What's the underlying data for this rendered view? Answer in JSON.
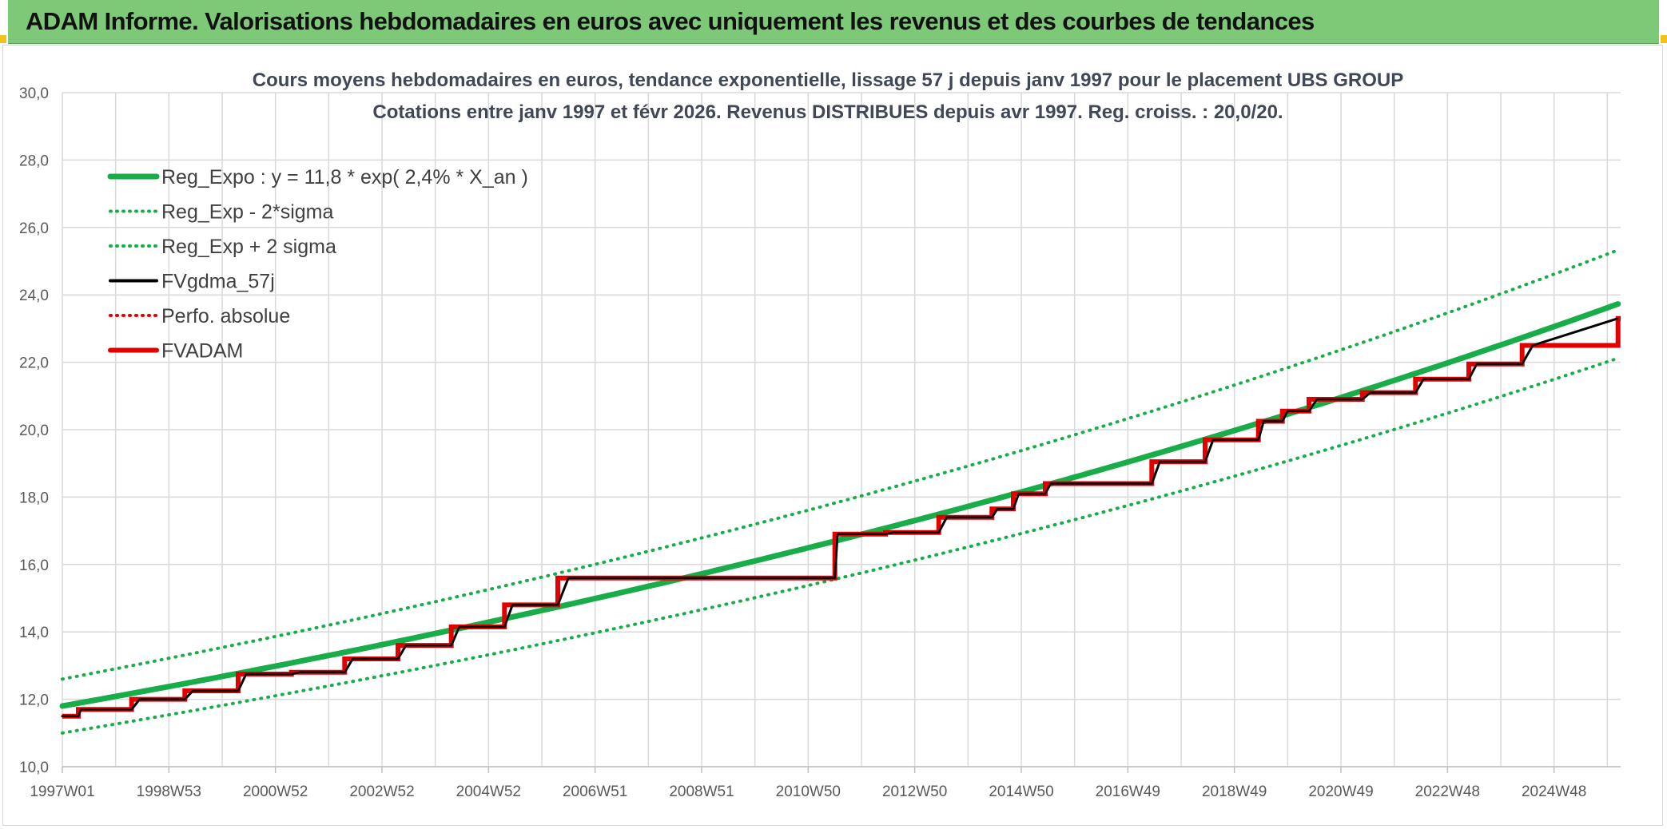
{
  "header": {
    "title": "ADAM Informe. Valorisations hebdomadaires en euros avec uniquement les revenus et des courbes de tendances"
  },
  "chart_data": {
    "type": "line",
    "title_lines": [
      "Cours moyens hebdomadaires en euros, tendance exponentielle, lissage 57 j depuis janv 1997 pour le placement UBS GROUP",
      "Cotations entre janv 1997 et févr 2026. Revenus DISTRIBUES depuis avr 1997. Reg. croiss. : 20,0/20."
    ],
    "xlabel": "",
    "ylabel": "",
    "ylim": [
      10,
      30
    ],
    "y_ticks": [
      "10,0",
      "12,0",
      "14,0",
      "16,0",
      "18,0",
      "20,0",
      "22,0",
      "24,0",
      "26,0",
      "28,0",
      "30,0"
    ],
    "x_range": [
      1997.0,
      2026.25
    ],
    "x_tick_labels": [
      "1997W01",
      "1998W53",
      "2000W52",
      "2002W52",
      "2004W52",
      "2006W51",
      "2008W51",
      "2010W50",
      "2012W50",
      "2014W50",
      "2016W49",
      "2018W49",
      "2020W49",
      "2022W48",
      "2024W48"
    ],
    "grid": true,
    "legend_position": "top-left",
    "series": [
      {
        "name": "Reg_Expo : y = 11,8 * exp( 2,4% *  X_an )",
        "color": "#18ad48",
        "style": "solid-thick",
        "x": [
          1997,
          2000,
          2003,
          2006,
          2009,
          2012,
          2015,
          2018,
          2021,
          2024,
          2026.2
        ],
        "values": [
          11.8,
          12.68,
          13.62,
          14.63,
          15.72,
          16.89,
          18.14,
          19.49,
          20.94,
          22.49,
          23.73
        ]
      },
      {
        "name": "Reg_Exp - 2*sigma",
        "color": "#18ad48",
        "style": "dotted",
        "x": [
          1997,
          2000,
          2003,
          2006,
          2009,
          2012,
          2015,
          2018,
          2021,
          2024,
          2026.2
        ],
        "values": [
          11.0,
          11.82,
          12.7,
          13.64,
          14.65,
          15.74,
          16.91,
          18.17,
          19.52,
          20.97,
          22.12
        ]
      },
      {
        "name": "Reg_Exp + 2 sigma",
        "color": "#18ad48",
        "style": "dotted",
        "x": [
          1997,
          2000,
          2003,
          2006,
          2009,
          2012,
          2015,
          2018,
          2021,
          2024,
          2026.2
        ],
        "values": [
          12.6,
          13.54,
          14.55,
          15.62,
          16.78,
          18.03,
          19.37,
          20.81,
          22.36,
          24.02,
          25.33
        ]
      },
      {
        "name": "FVgdma_57j",
        "color": "#000000",
        "style": "solid",
        "x": [
          1997.0,
          1997.3,
          1997.35,
          1998.3,
          1998.45,
          1999.3,
          1999.45,
          2000.3,
          2000.45,
          2001.3,
          2001.45,
          2002.3,
          2002.45,
          2003.3,
          2003.45,
          2004.3,
          2004.45,
          2005.3,
          2005.45,
          2006.3,
          2006.5,
          2011.5,
          2011.55,
          2012.45,
          2012.6,
          2013.45,
          2013.6,
          2014.45,
          2014.55,
          2014.85,
          2014.95,
          2015.45,
          2015.55,
          2017.45,
          2017.6,
          2018.45,
          2018.6,
          2019.45,
          2019.55,
          2019.9,
          2020.0,
          2020.4,
          2020.55,
          2021.4,
          2021.55,
          2022.4,
          2022.55,
          2023.4,
          2023.55,
          2024.4,
          2024.6,
          2026.2
        ],
        "values": [
          11.5,
          11.5,
          11.7,
          11.7,
          12.0,
          12.0,
          12.25,
          12.25,
          12.75,
          12.75,
          12.8,
          12.8,
          13.2,
          13.2,
          13.6,
          13.6,
          14.15,
          14.15,
          14.8,
          14.8,
          15.6,
          15.6,
          16.9,
          16.9,
          16.95,
          16.95,
          17.4,
          17.4,
          17.65,
          17.65,
          18.1,
          18.1,
          18.4,
          18.4,
          19.05,
          19.05,
          19.7,
          19.7,
          20.25,
          20.25,
          20.55,
          20.55,
          20.9,
          20.9,
          21.1,
          21.1,
          21.5,
          21.5,
          21.95,
          21.95,
          22.5,
          23.3
        ]
      },
      {
        "name": "Perfo. absolue",
        "color": "#e00000",
        "style": "dotted",
        "x": [],
        "values": []
      },
      {
        "name": "FVADAM",
        "color": "#e00000",
        "style": "step-thick",
        "x": [
          1997.0,
          1997.3,
          1998.3,
          1999.3,
          2000.3,
          2001.3,
          2002.3,
          2003.3,
          2004.3,
          2005.3,
          2006.3,
          2011.5,
          2012.45,
          2013.45,
          2014.45,
          2014.85,
          2015.45,
          2017.45,
          2018.45,
          2019.45,
          2019.9,
          2020.4,
          2021.4,
          2022.4,
          2023.4,
          2024.4,
          2026.2
        ],
        "values": [
          11.5,
          11.7,
          12.0,
          12.25,
          12.75,
          12.8,
          13.2,
          13.6,
          14.15,
          14.8,
          15.6,
          16.9,
          16.95,
          17.4,
          17.65,
          18.1,
          18.4,
          19.05,
          19.7,
          20.25,
          20.55,
          20.9,
          21.1,
          21.5,
          21.95,
          22.5,
          23.3
        ]
      }
    ]
  }
}
